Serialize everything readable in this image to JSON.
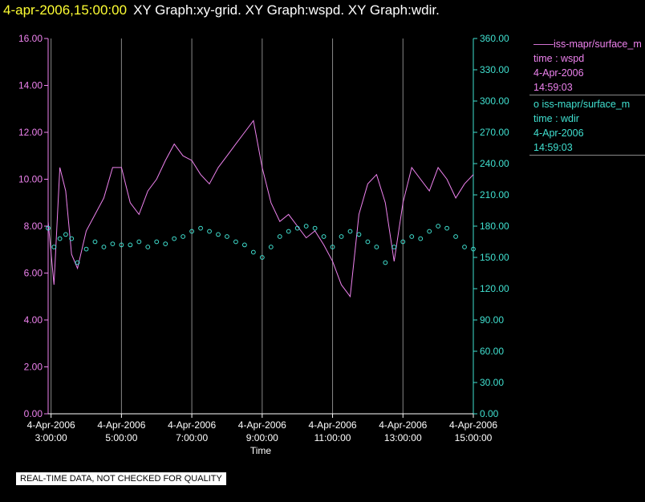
{
  "header": {
    "timestamp": "4-apr-2006,15:00:00",
    "titles": "XY Graph:xy-grid.  XY Graph:wspd.  XY Graph:wdir."
  },
  "colors": {
    "wspd": "#ee82ee",
    "wdir": "#40e0d0",
    "grid": "#888888",
    "background": "#000000"
  },
  "legend": {
    "wspd": {
      "name": "iss-mapr/surface_m",
      "var": "time : wspd",
      "date": "4-Apr-2006",
      "time": "14:59:03"
    },
    "wdir": {
      "name": "iss-mapr/surface_m",
      "var": "time : wdir",
      "date": "4-Apr-2006",
      "time": "14:59:03"
    }
  },
  "footer": "REAL-TIME DATA, NOT CHECKED FOR QUALITY",
  "chart_data": {
    "type": "line",
    "xlabel": "Time",
    "xlim": [
      "2006-04-04 02:55",
      "2006-04-04 15:00"
    ],
    "x_ticks": [
      {
        "t": "03:00",
        "date": "4-Apr-2006",
        "time": "3:00:00"
      },
      {
        "t": "05:00",
        "date": "4-Apr-2006",
        "time": "5:00:00"
      },
      {
        "t": "07:00",
        "date": "4-Apr-2006",
        "time": "7:00:00"
      },
      {
        "t": "09:00",
        "date": "4-Apr-2006",
        "time": "9:00:00"
      },
      {
        "t": "11:00",
        "date": "4-Apr-2006",
        "time": "11:00:00"
      },
      {
        "t": "13:00",
        "date": "4-Apr-2006",
        "time": "13:00:00"
      },
      {
        "t": "15:00",
        "date": "4-Apr-2006",
        "time": "15:00:00"
      }
    ],
    "grid": "vertical",
    "y_left": {
      "lim": [
        0,
        16
      ],
      "ticks": [
        "0.00",
        "2.00",
        "4.00",
        "6.00",
        "8.00",
        "10.00",
        "12.00",
        "14.00",
        "16.00"
      ]
    },
    "y_right": {
      "lim": [
        0,
        360
      ],
      "ticks": [
        "0.00",
        "30.00",
        "60.00",
        "90.00",
        "120.00",
        "150.00",
        "180.00",
        "210.00",
        "240.00",
        "270.00",
        "300.00",
        "330.00",
        "360.00"
      ]
    },
    "series": [
      {
        "name": "wspd",
        "axis": "left",
        "style": "line",
        "x": [
          "02:55",
          "03:05",
          "03:15",
          "03:25",
          "03:35",
          "03:45",
          "04:00",
          "04:15",
          "04:30",
          "04:45",
          "05:00",
          "05:15",
          "05:30",
          "05:45",
          "06:00",
          "06:15",
          "06:30",
          "06:45",
          "07:00",
          "07:15",
          "07:30",
          "07:45",
          "08:00",
          "08:15",
          "08:30",
          "08:45",
          "09:00",
          "09:15",
          "09:30",
          "09:45",
          "10:00",
          "10:15",
          "10:30",
          "10:45",
          "11:00",
          "11:15",
          "11:30",
          "11:45",
          "12:00",
          "12:15",
          "12:30",
          "12:45",
          "13:00",
          "13:15",
          "13:30",
          "13:45",
          "14:00",
          "14:15",
          "14:30",
          "14:45",
          "15:00"
        ],
        "y": [
          8.2,
          5.5,
          10.5,
          9.5,
          6.8,
          6.2,
          7.8,
          8.5,
          9.2,
          10.5,
          10.5,
          9.0,
          8.5,
          9.5,
          10.0,
          10.8,
          11.5,
          11.0,
          10.8,
          10.2,
          9.8,
          10.5,
          11.0,
          11.5,
          12.0,
          12.5,
          10.5,
          9.0,
          8.2,
          8.5,
          8.0,
          7.5,
          7.8,
          7.2,
          6.5,
          5.5,
          5.0,
          8.5,
          9.8,
          10.2,
          9.0,
          6.5,
          9.0,
          10.5,
          10.0,
          9.5,
          10.5,
          10.0,
          9.2,
          9.8,
          10.2
        ]
      },
      {
        "name": "wdir",
        "axis": "right",
        "style": "markers",
        "x": [
          "02:55",
          "03:05",
          "03:15",
          "03:25",
          "03:35",
          "03:45",
          "04:00",
          "04:15",
          "04:30",
          "04:45",
          "05:00",
          "05:15",
          "05:30",
          "05:45",
          "06:00",
          "06:15",
          "06:30",
          "06:45",
          "07:00",
          "07:15",
          "07:30",
          "07:45",
          "08:00",
          "08:15",
          "08:30",
          "08:45",
          "09:00",
          "09:15",
          "09:30",
          "09:45",
          "10:00",
          "10:15",
          "10:30",
          "10:45",
          "11:00",
          "11:15",
          "11:30",
          "11:45",
          "12:00",
          "12:15",
          "12:30",
          "12:45",
          "13:00",
          "13:15",
          "13:30",
          "13:45",
          "14:00",
          "14:15",
          "14:30",
          "14:45",
          "15:00"
        ],
        "y": [
          178,
          160,
          168,
          172,
          168,
          145,
          158,
          165,
          160,
          163,
          162,
          162,
          165,
          160,
          165,
          163,
          168,
          170,
          175,
          178,
          175,
          172,
          170,
          165,
          162,
          155,
          150,
          160,
          170,
          175,
          178,
          180,
          178,
          170,
          160,
          170,
          175,
          172,
          165,
          160,
          145,
          160,
          165,
          170,
          168,
          175,
          180,
          178,
          170,
          160,
          158
        ]
      }
    ]
  }
}
